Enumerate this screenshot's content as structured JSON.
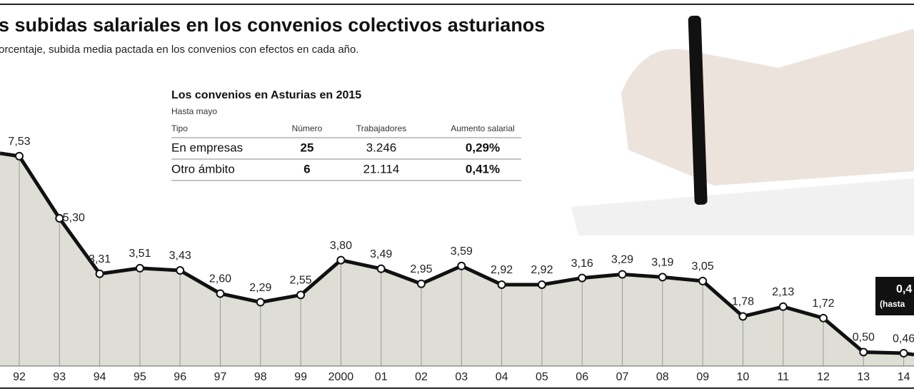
{
  "chart_data": {
    "type": "area",
    "title": "s subidas salariales en los convenios colectivos asturianos",
    "subtitle": "orcentaje, subida media pactada en los convenios con efectos en cada año.",
    "categories": [
      "92",
      "93",
      "94",
      "95",
      "96",
      "97",
      "98",
      "99",
      "2000",
      "01",
      "02",
      "03",
      "04",
      "05",
      "06",
      "07",
      "08",
      "09",
      "10",
      "11",
      "12",
      "13",
      "14"
    ],
    "values": [
      7.53,
      5.3,
      3.31,
      3.51,
      3.43,
      2.6,
      2.29,
      2.55,
      3.8,
      3.49,
      2.95,
      3.59,
      2.92,
      2.92,
      3.16,
      3.29,
      3.19,
      3.05,
      1.78,
      2.13,
      1.72,
      0.5,
      0.46
    ],
    "value_labels": [
      "7,53",
      "5,30",
      "3,31",
      "3,51",
      "3,43",
      "2,60",
      "2,29",
      "2,55",
      "3,80",
      "3,49",
      "2,95",
      "3,59",
      "2,92",
      "2,92",
      "3,16",
      "3,29",
      "3,19",
      "3,05",
      "1,78",
      "2,13",
      "1,72",
      "0,50",
      "0,46"
    ],
    "color": "#111111",
    "fill": "#deded6",
    "ylim": [
      0,
      8.5
    ],
    "annotations": [
      "0,4",
      "(hasta"
    ]
  },
  "table": {
    "title": "Los convenios en Asturias en 2015",
    "subtitle": "Hasta mayo",
    "header": [
      "Tipo",
      "Número",
      "Trabajadores",
      "Aumento salarial"
    ],
    "rows": [
      [
        "En empresas",
        "25",
        "3.246",
        "0,29%"
      ],
      [
        "Otro ámbito",
        "6",
        "21.114",
        "0,41%"
      ]
    ]
  }
}
